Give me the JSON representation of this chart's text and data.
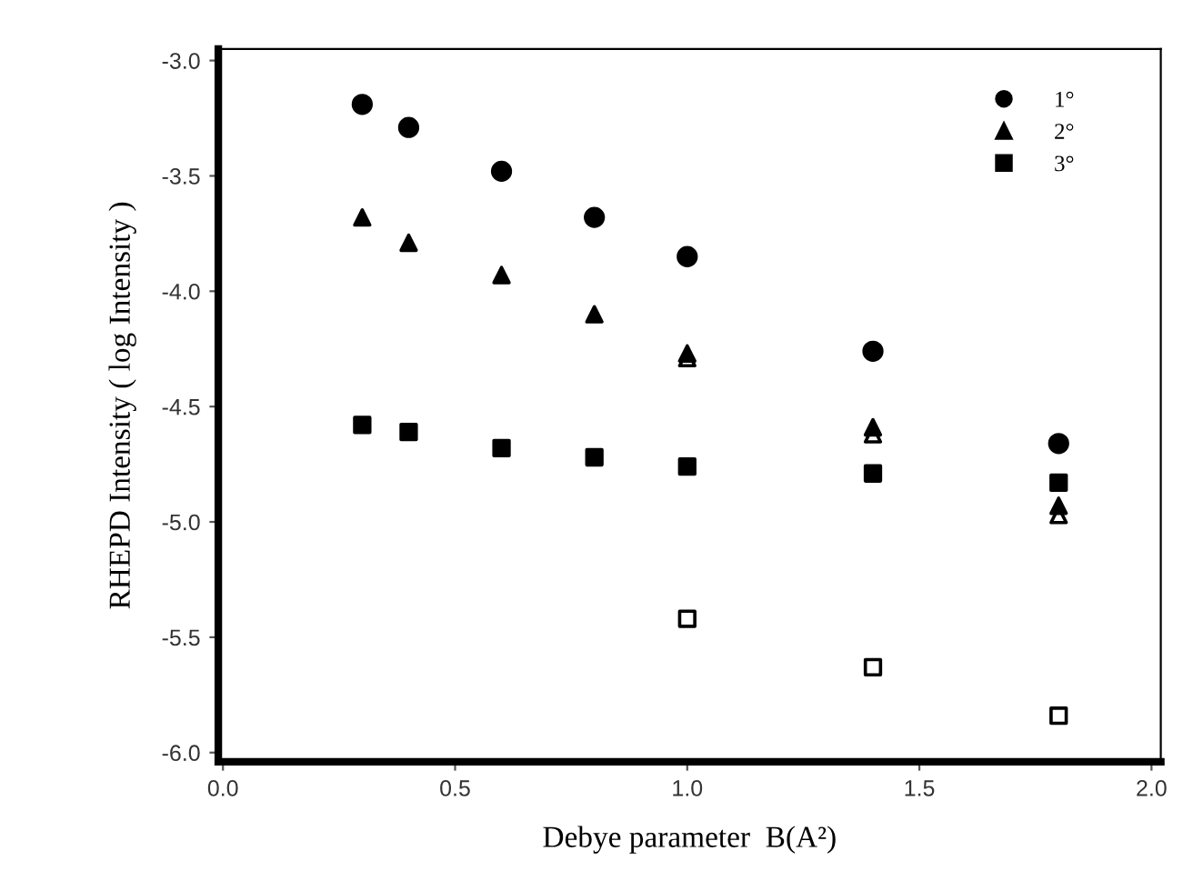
{
  "chart_data": {
    "type": "scatter",
    "xlabel": "Debye parameter  B(A²)",
    "ylabel": "RHEPD Intensity ( log Intensity )",
    "series": [
      {
        "name": "1°",
        "color": "#000000",
        "marker": "circle",
        "x": [
          0.3,
          0.4,
          0.6,
          0.8,
          1.0,
          1.4,
          1.8
        ],
        "values": [
          -3.19,
          -3.29,
          -3.48,
          -3.68,
          -3.85,
          -4.26,
          -4.66
        ]
      },
      {
        "name": "2°",
        "color": "#000000",
        "marker": "triangle",
        "x": [
          0.3,
          0.4,
          0.6,
          0.8,
          1.0,
          1.4,
          1.8
        ],
        "values": [
          -3.68,
          -3.79,
          -3.93,
          -4.1,
          -4.27,
          -4.59,
          -4.93
        ]
      },
      {
        "name": "3°",
        "color": "#000000",
        "marker": "square",
        "x": [
          0.3,
          0.4,
          0.6,
          0.8,
          1.0,
          1.4,
          1.8
        ],
        "values": [
          -4.58,
          -4.61,
          -4.68,
          -4.72,
          -4.76,
          -4.79,
          -4.83
        ]
      },
      {
        "color": "#000000",
        "marker": "triangle",
        "x": [
          1.0,
          1.4,
          1.8
        ],
        "values": [
          -4.29,
          -4.62,
          -4.97
        ]
      },
      {
        "color": "#000000",
        "marker": "square",
        "x": [
          1.0,
          1.4,
          1.8
        ],
        "values": [
          -5.42,
          -5.63,
          -5.84
        ]
      }
    ],
    "xlim": [
      -0.01,
      2.02
    ],
    "xticks": [
      {
        "value": 0,
        "label": "0.0"
      },
      0.5,
      {
        "value": 1,
        "label": "1.0"
      },
      1.5,
      {
        "value": 2,
        "label": "2.0"
      }
    ],
    "ylim": [
      -6.04,
      -2.95
    ],
    "yticks": [
      {
        "value": -6,
        "label": "-6.0"
      },
      -5.5,
      {
        "value": -5,
        "label": "-5.0"
      },
      -4.5,
      {
        "value": -4,
        "label": "-4.0"
      },
      -3.5,
      {
        "value": -3,
        "label": "-3.0"
      }
    ],
    "grid": false,
    "legend": "top right"
  }
}
